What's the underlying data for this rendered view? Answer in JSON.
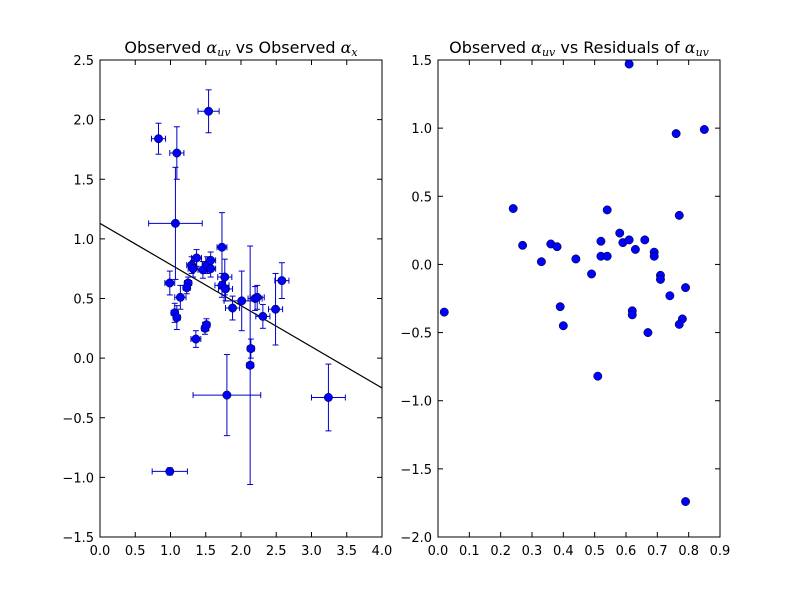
{
  "chart_data": [
    {
      "type": "scatter",
      "title": {
        "prefix": "Observed ",
        "var1": "α",
        "var1_sub": "uv",
        "middle": " vs Observed ",
        "var2": "α",
        "var2_sub": "x"
      },
      "xlabel": "",
      "ylabel": "",
      "xlim": [
        0.0,
        4.0
      ],
      "ylim": [
        -1.5,
        2.5
      ],
      "xticks": [
        "0.0",
        "0.5",
        "1.0",
        "1.5",
        "2.0",
        "2.5",
        "3.0",
        "3.5",
        "4.0"
      ],
      "yticks": [
        "−1.5",
        "−1.0",
        "−0.5",
        "0.0",
        "0.5",
        "1.0",
        "1.5",
        "2.0",
        "2.5"
      ],
      "grid": false,
      "marker_color": "#0000ff",
      "errorbar_color": "#0000cc",
      "fit_line": {
        "x": [
          0.0,
          4.0
        ],
        "y": [
          1.13,
          -0.25
        ],
        "color": "#000000"
      },
      "points": [
        {
          "x": 0.83,
          "y": 1.84,
          "xerr": 0.1,
          "yerr": 0.13
        },
        {
          "x": 1.09,
          "y": 1.72,
          "xerr": 0.1,
          "yerr": 0.22
        },
        {
          "x": 1.54,
          "y": 2.07,
          "xerr": 0.15,
          "yerr": 0.18
        },
        {
          "x": 1.07,
          "y": 1.13,
          "xerr": 0.38,
          "yerr": 0.47
        },
        {
          "x": 1.73,
          "y": 0.93,
          "xerr": 0.07,
          "yerr": 0.29
        },
        {
          "x": 0.99,
          "y": 0.63,
          "xerr": 0.07,
          "yerr": 0.1
        },
        {
          "x": 1.06,
          "y": 0.38,
          "xerr": 0.05,
          "yerr": 0.08
        },
        {
          "x": 1.09,
          "y": 0.34,
          "xerr": 0.05,
          "yerr": 0.1
        },
        {
          "x": 1.14,
          "y": 0.51,
          "xerr": 0.08,
          "yerr": 0.1
        },
        {
          "x": 1.25,
          "y": 0.63,
          "xerr": 0.05,
          "yerr": 0.05
        },
        {
          "x": 1.23,
          "y": 0.59,
          "xerr": 0.05,
          "yerr": 0.05
        },
        {
          "x": 1.3,
          "y": 0.78,
          "xerr": 0.07,
          "yerr": 0.07
        },
        {
          "x": 1.32,
          "y": 0.75,
          "xerr": 0.07,
          "yerr": 0.07
        },
        {
          "x": 1.37,
          "y": 0.84,
          "xerr": 0.07,
          "yerr": 0.07
        },
        {
          "x": 1.46,
          "y": 0.74,
          "xerr": 0.07,
          "yerr": 0.07
        },
        {
          "x": 1.52,
          "y": 0.78,
          "xerr": 0.07,
          "yerr": 0.07
        },
        {
          "x": 1.57,
          "y": 0.82,
          "xerr": 0.07,
          "yerr": 0.07
        },
        {
          "x": 1.57,
          "y": 0.75,
          "xerr": 0.07,
          "yerr": 0.07
        },
        {
          "x": 1.36,
          "y": 0.16,
          "xerr": 0.07,
          "yerr": 0.07
        },
        {
          "x": 1.49,
          "y": 0.25,
          "xerr": 0.05,
          "yerr": 0.05
        },
        {
          "x": 1.51,
          "y": 0.28,
          "xerr": 0.05,
          "yerr": 0.05
        },
        {
          "x": 1.73,
          "y": 0.61,
          "xerr": 0.1,
          "yerr": 0.1
        },
        {
          "x": 1.77,
          "y": 0.68,
          "xerr": 0.1,
          "yerr": 0.15
        },
        {
          "x": 1.78,
          "y": 0.58,
          "xerr": 0.1,
          "yerr": 0.1
        },
        {
          "x": 1.88,
          "y": 0.42,
          "xerr": 0.1,
          "yerr": 0.1
        },
        {
          "x": 2.01,
          "y": 0.48,
          "xerr": 0.25,
          "yerr": 0.25
        },
        {
          "x": 2.2,
          "y": 0.5,
          "xerr": 0.1,
          "yerr": 0.1
        },
        {
          "x": 2.23,
          "y": 0.51,
          "xerr": 0.1,
          "yerr": 0.1
        },
        {
          "x": 2.31,
          "y": 0.35,
          "xerr": 0.1,
          "yerr": 0.1
        },
        {
          "x": 2.49,
          "y": 0.41,
          "xerr": 0.1,
          "yerr": 0.3
        },
        {
          "x": 2.58,
          "y": 0.65,
          "xerr": 0.1,
          "yerr": 0.15
        },
        {
          "x": 2.14,
          "y": 0.08,
          "xerr": 0.05,
          "yerr": 0.08
        },
        {
          "x": 2.13,
          "y": -0.06,
          "xerr": 0.05,
          "yerr": 1.0
        },
        {
          "x": 1.8,
          "y": -0.31,
          "xerr": 0.48,
          "yerr": 0.34
        },
        {
          "x": 3.24,
          "y": -0.33,
          "xerr": 0.24,
          "yerr": 0.28
        },
        {
          "x": 0.99,
          "y": -0.95,
          "xerr": 0.25,
          "yerr": 0.03
        }
      ]
    },
    {
      "type": "scatter",
      "title": {
        "prefix": "Observed ",
        "var1": "α",
        "var1_sub": "uv",
        "middle": " vs Residuals of ",
        "var2": "α",
        "var2_sub": "uv"
      },
      "xlabel": "",
      "ylabel": "",
      "xlim": [
        0.0,
        0.9
      ],
      "ylim": [
        -2.0,
        1.5
      ],
      "xticks": [
        "0.0",
        "0.1",
        "0.2",
        "0.3",
        "0.4",
        "0.5",
        "0.6",
        "0.7",
        "0.8",
        "0.9"
      ],
      "yticks": [
        "−2.0",
        "−1.5",
        "−1.0",
        "−0.5",
        "0.0",
        "0.5",
        "1.0",
        "1.5"
      ],
      "grid": false,
      "marker_color": "#0000ff",
      "points": [
        {
          "x": 0.02,
          "y": -0.35
        },
        {
          "x": 0.24,
          "y": 0.41
        },
        {
          "x": 0.27,
          "y": 0.14
        },
        {
          "x": 0.33,
          "y": 0.02
        },
        {
          "x": 0.36,
          "y": 0.15
        },
        {
          "x": 0.38,
          "y": 0.13
        },
        {
          "x": 0.39,
          "y": -0.31
        },
        {
          "x": 0.4,
          "y": -0.45
        },
        {
          "x": 0.44,
          "y": 0.04
        },
        {
          "x": 0.49,
          "y": -0.07
        },
        {
          "x": 0.51,
          "y": -0.82
        },
        {
          "x": 0.52,
          "y": 0.17
        },
        {
          "x": 0.52,
          "y": 0.06
        },
        {
          "x": 0.54,
          "y": 0.4
        },
        {
          "x": 0.54,
          "y": 0.06
        },
        {
          "x": 0.58,
          "y": 0.23
        },
        {
          "x": 0.59,
          "y": 0.16
        },
        {
          "x": 0.61,
          "y": 1.47
        },
        {
          "x": 0.61,
          "y": 0.18
        },
        {
          "x": 0.62,
          "y": -0.34
        },
        {
          "x": 0.62,
          "y": -0.37
        },
        {
          "x": 0.63,
          "y": 0.11
        },
        {
          "x": 0.66,
          "y": 0.18
        },
        {
          "x": 0.67,
          "y": -0.5
        },
        {
          "x": 0.69,
          "y": 0.09
        },
        {
          "x": 0.69,
          "y": 0.06
        },
        {
          "x": 0.71,
          "y": -0.08
        },
        {
          "x": 0.71,
          "y": -0.11
        },
        {
          "x": 0.74,
          "y": -0.23
        },
        {
          "x": 0.76,
          "y": 0.96
        },
        {
          "x": 0.77,
          "y": 0.36
        },
        {
          "x": 0.78,
          "y": -0.4
        },
        {
          "x": 0.77,
          "y": -0.44
        },
        {
          "x": 0.79,
          "y": -0.17
        },
        {
          "x": 0.79,
          "y": -1.74
        },
        {
          "x": 0.85,
          "y": 0.99
        }
      ]
    }
  ]
}
